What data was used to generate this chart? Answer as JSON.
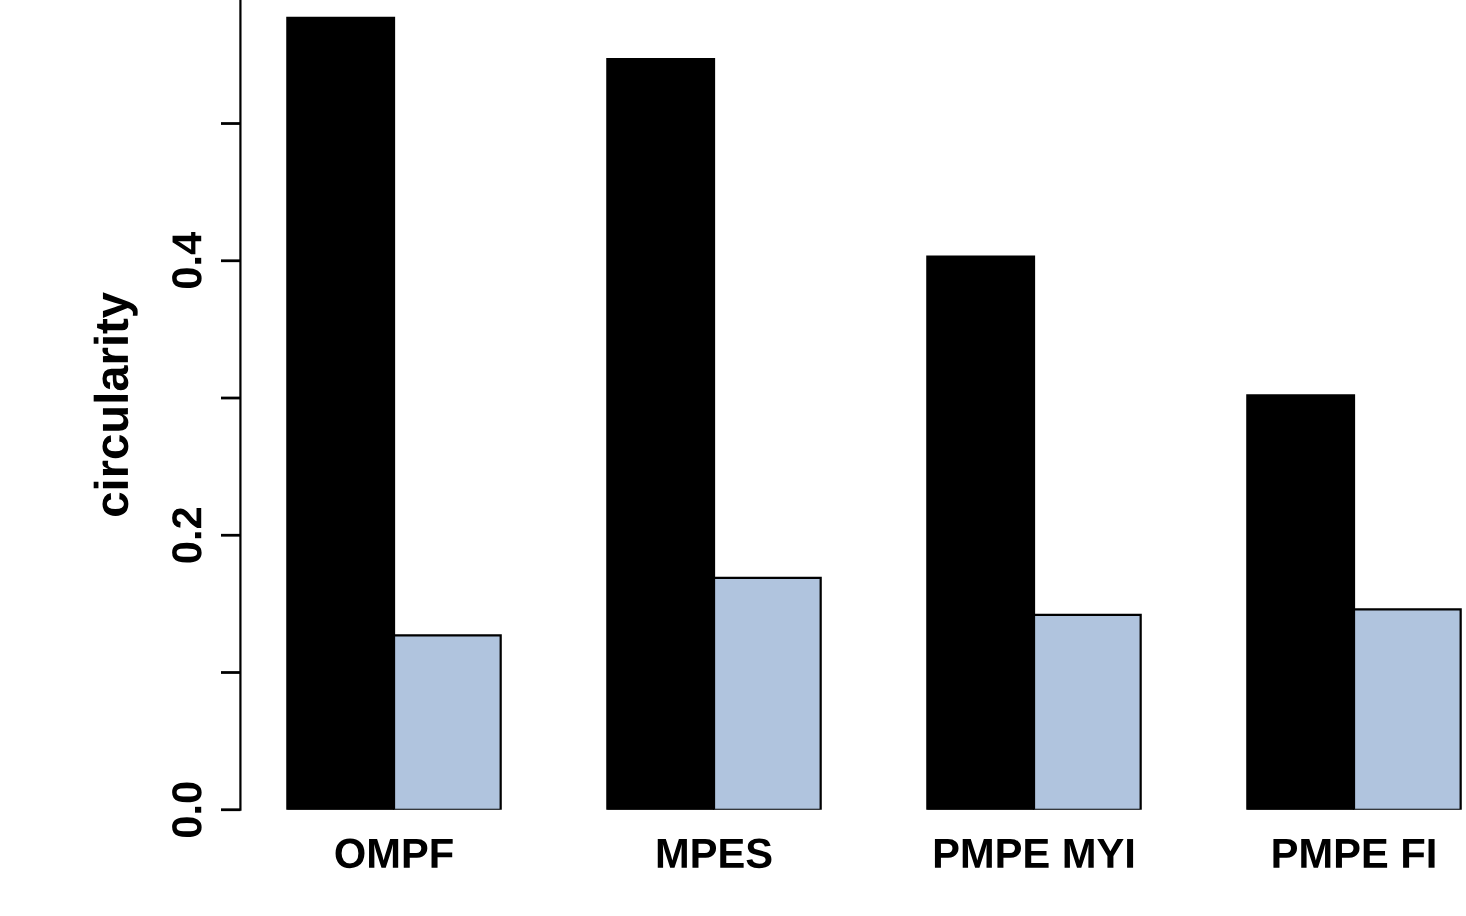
{
  "chart_data": {
    "type": "bar",
    "ylabel": "circularity",
    "categories": [
      "OMPF",
      "MPES",
      "PMPE MYI",
      "PMPE FI"
    ],
    "series": [
      {
        "color": "#000000",
        "values": [
          0.577,
          0.547,
          0.403,
          0.302
        ]
      },
      {
        "color": "#b0c4de",
        "values": [
          0.127,
          0.169,
          0.142,
          0.146
        ]
      }
    ],
    "ylim": [
      0,
      0.59
    ],
    "yticks": [
      {
        "value": 0,
        "label": "0.0"
      },
      {
        "value": 0.1,
        "label": null
      },
      0.2,
      {
        "value": 0.3,
        "label": null
      },
      0.4,
      {
        "value": 0.5,
        "label": null
      }
    ],
    "grid": false,
    "legend": false
  }
}
